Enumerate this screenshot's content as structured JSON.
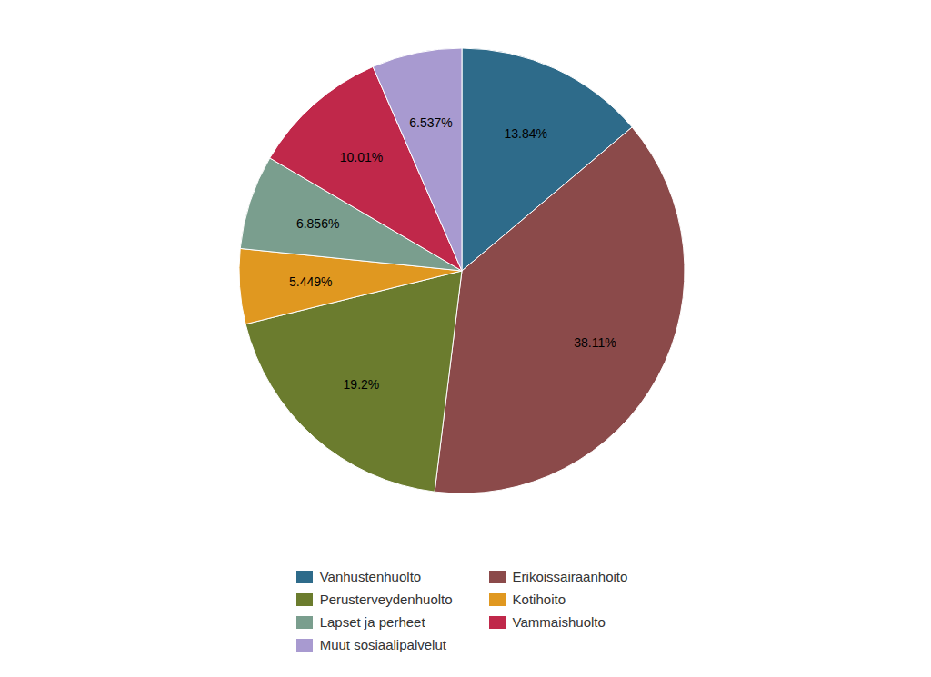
{
  "chart_data": {
    "type": "pie",
    "categories": [
      "Vanhustenhuolto",
      "Erikoissairaanhoito",
      "Perusterveydenhuolto",
      "Kotihoito",
      "Lapset ja perheet",
      "Vammaishuolto",
      "Muut sosiaalipalvelut"
    ],
    "values": [
      13.84,
      38.11,
      19.2,
      5.449,
      6.856,
      10.01,
      6.537
    ],
    "value_labels": [
      "13.84%",
      "38.11%",
      "19.2%",
      "5.449%",
      "6.856%",
      "10.01%",
      "6.537%"
    ],
    "colors": [
      "#2e6b8a",
      "#8b4a4a",
      "#6b7c2e",
      "#e09820",
      "#7a9e8e",
      "#c0284a",
      "#a89ad0"
    ],
    "data_labels": true,
    "legend": "bottom"
  }
}
